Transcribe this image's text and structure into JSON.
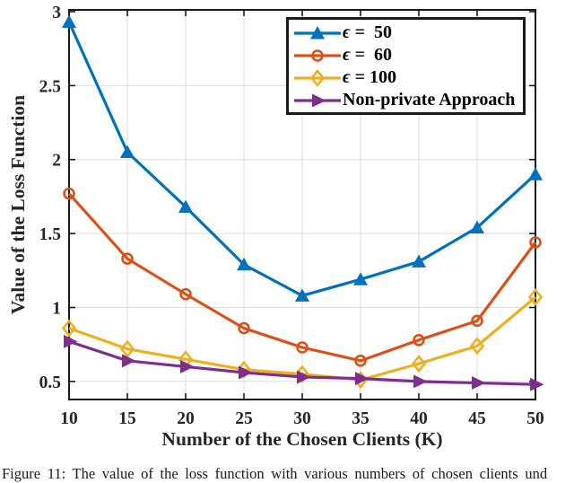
{
  "figure": {
    "caption": "Figure 11: The value of the loss function with various numbers of chosen clients und"
  },
  "chart_data": {
    "type": "line",
    "title": "",
    "xlabel": "Number of the Chosen Clients (K)",
    "ylabel": "Value of the Loss Function",
    "x": [
      10,
      15,
      20,
      25,
      30,
      35,
      40,
      45,
      50
    ],
    "xticks": [
      "10",
      "15",
      "20",
      "25",
      "30",
      "35",
      "40",
      "45",
      "50"
    ],
    "yticks": [
      "0.5",
      "1",
      "1.5",
      "2",
      "2.5",
      "3"
    ],
    "ytick_values": [
      0.5,
      1,
      1.5,
      2,
      2.5,
      3
    ],
    "xlim": [
      10,
      50
    ],
    "ylim": [
      0.378,
      3.012
    ],
    "grid": true,
    "legend_position": "top-right",
    "axis_color": "#262626",
    "grid_color": "#dedede",
    "series": [
      {
        "name": "ϵ =  50",
        "legend_symbol": "ϵ",
        "legend_label": " =  50",
        "color": "#0072BD",
        "marker": "triangle-up",
        "marker_filled": true,
        "values": [
          2.93,
          2.05,
          1.68,
          1.29,
          1.08,
          1.19,
          1.31,
          1.54,
          1.9
        ]
      },
      {
        "name": "ϵ =  60",
        "legend_symbol": "ϵ",
        "legend_label": " =  60",
        "color": "#D95319",
        "marker": "circle",
        "marker_filled": false,
        "values": [
          1.77,
          1.33,
          1.09,
          0.86,
          0.73,
          0.64,
          0.78,
          0.91,
          1.44
        ]
      },
      {
        "name": "ϵ = 100",
        "legend_symbol": "ϵ",
        "legend_label": " = 100",
        "color": "#EDB120",
        "marker": "diamond",
        "marker_filled": false,
        "values": [
          0.86,
          0.72,
          0.65,
          0.58,
          0.55,
          0.51,
          0.62,
          0.74,
          1.07
        ]
      },
      {
        "name": "Non-private Approach",
        "legend_symbol": "",
        "legend_label": "Non-private Approach",
        "color": "#7E2F8E",
        "marker": "triangle-right",
        "marker_filled": true,
        "values": [
          0.77,
          0.64,
          0.6,
          0.56,
          0.53,
          0.52,
          0.5,
          0.49,
          0.48
        ]
      }
    ]
  }
}
